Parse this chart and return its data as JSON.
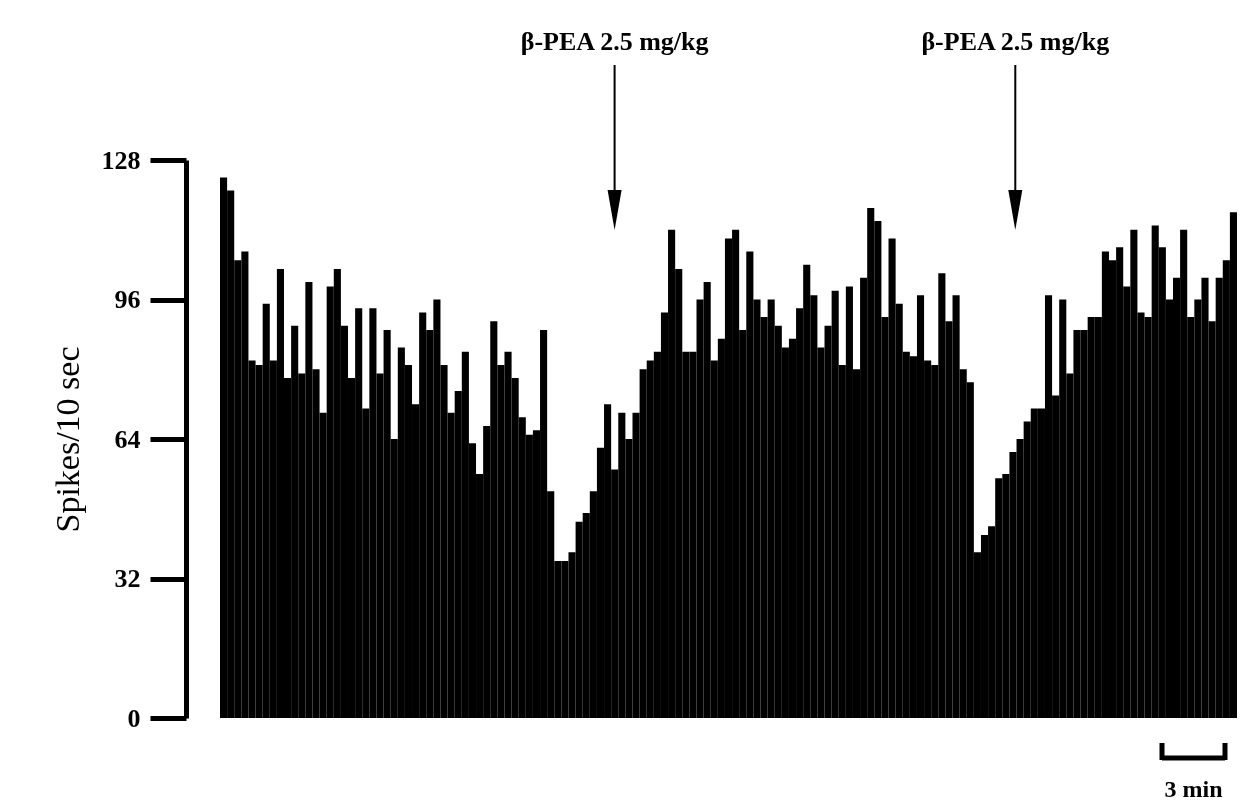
{
  "chart_data": {
    "type": "bar",
    "ylabel": "Spikes/10 sec",
    "categories": [
      null,
      null,
      null,
      null,
      null,
      null,
      null,
      null,
      null,
      null,
      null,
      null,
      null,
      null,
      null,
      null,
      null,
      null,
      null,
      null,
      null,
      null,
      null,
      null,
      null,
      null,
      null,
      null,
      null,
      null,
      null,
      null,
      null,
      null,
      null,
      null,
      null,
      null,
      null,
      null,
      null,
      null,
      null,
      null,
      null,
      null,
      null,
      null,
      null,
      null,
      null,
      null,
      null,
      null,
      null,
      null,
      null,
      null,
      null,
      null,
      null,
      null,
      null,
      null,
      null,
      null,
      null,
      null,
      null,
      null,
      null,
      null,
      null,
      null,
      null,
      null,
      null,
      null,
      null,
      null,
      null,
      null,
      null,
      null,
      null,
      null,
      null,
      null,
      null,
      null,
      null,
      null,
      null,
      null,
      null,
      null,
      null,
      null,
      null,
      null,
      null,
      null,
      null,
      null,
      null,
      null,
      null,
      null,
      null,
      null,
      null,
      null,
      null,
      null,
      null,
      null,
      null,
      null,
      null,
      null,
      null,
      null,
      null,
      null,
      null,
      null,
      null,
      null,
      null,
      null,
      null,
      null,
      null,
      null,
      null,
      null,
      null,
      null,
      null,
      null,
      null,
      null,
      null
    ],
    "values": [
      124,
      121,
      105,
      107,
      82,
      81,
      95,
      82,
      103,
      78,
      90,
      79,
      100,
      80,
      70,
      99,
      103,
      90,
      78,
      94,
      71,
      94,
      79,
      89,
      64,
      85,
      81,
      72,
      93,
      89,
      96,
      81,
      70,
      75,
      84,
      63,
      56,
      67,
      91,
      81,
      84,
      78,
      69,
      65,
      66,
      89,
      52,
      36,
      36,
      38,
      45,
      47,
      52,
      62,
      72,
      57,
      70,
      64,
      70,
      80,
      82,
      84,
      93,
      112,
      103,
      84,
      84,
      96,
      100,
      82,
      87,
      110,
      112,
      89,
      107,
      96,
      92,
      96,
      90,
      85,
      87,
      94,
      104,
      97,
      85,
      90,
      98,
      81,
      99,
      80,
      101,
      117,
      114,
      92,
      110,
      95,
      84,
      83,
      97,
      82,
      81,
      102,
      91,
      97,
      80,
      77,
      38,
      42,
      44,
      55,
      56,
      61,
      64,
      68,
      71,
      71,
      97,
      74,
      96,
      79,
      89,
      89,
      92,
      92,
      107,
      105,
      108,
      99,
      112,
      93,
      92,
      113,
      108,
      96,
      101,
      112,
      92,
      96,
      101,
      91,
      101,
      105,
      116
    ],
    "color": "#000000",
    "ylim": [
      0,
      128
    ],
    "yticks": [
      0,
      32,
      64,
      96,
      128
    ],
    "grid": false,
    "annotations": [
      "β-PEA 2.5 mg/kg",
      "β-PEA 2.5 mg/kg",
      "3 min"
    ]
  }
}
